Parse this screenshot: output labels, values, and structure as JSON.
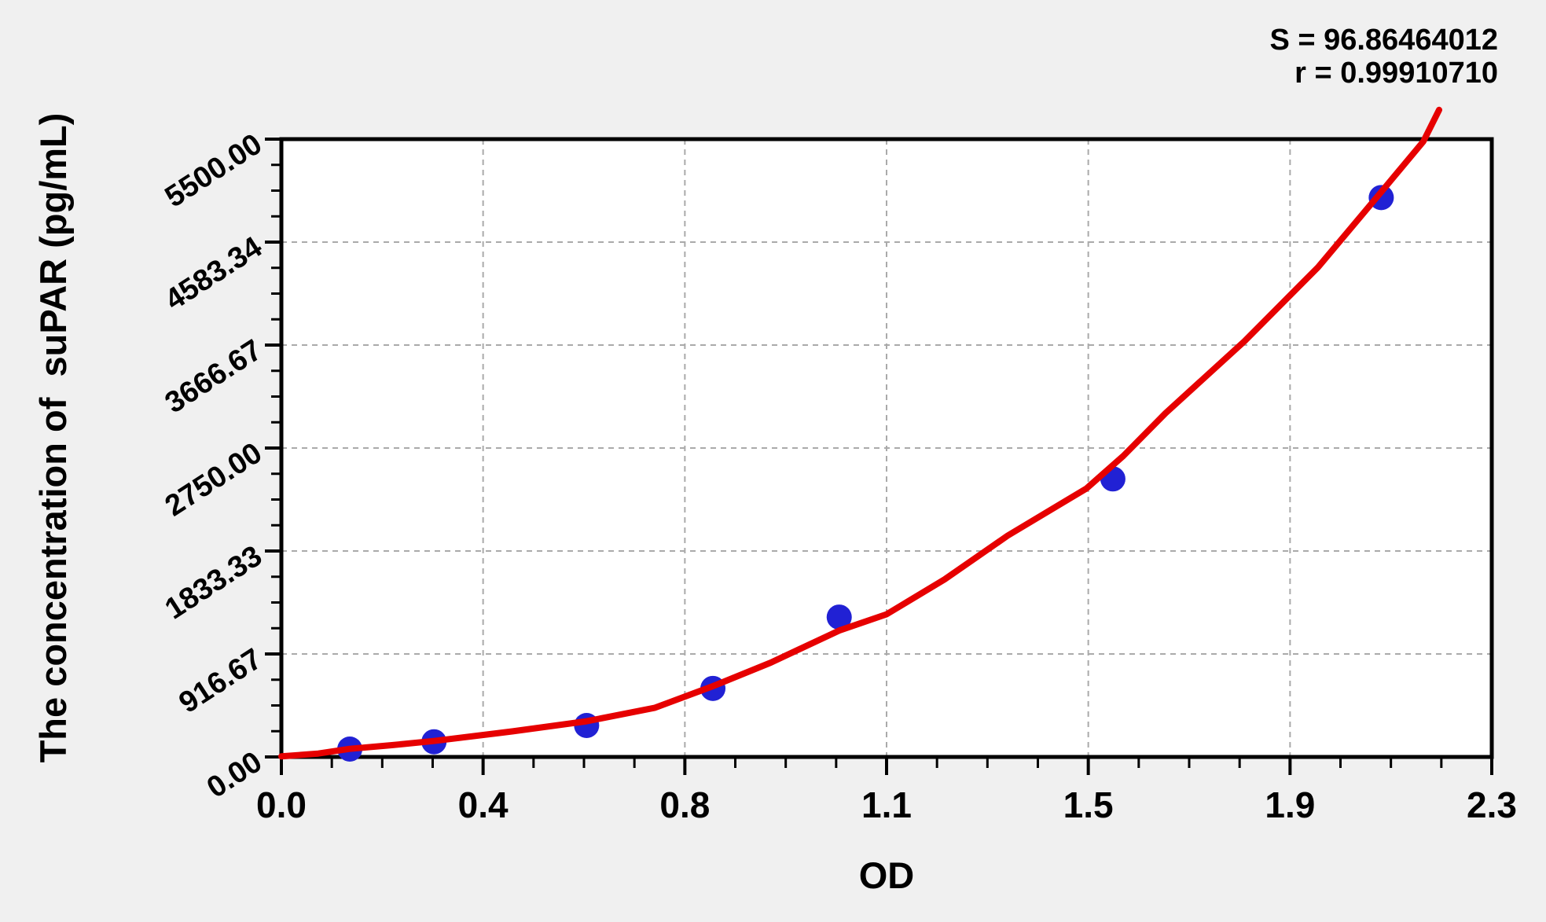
{
  "annotations": {
    "s_line": "S = 96.86464012",
    "r_line": "r = 0.99910710"
  },
  "chart_data": {
    "type": "scatter",
    "title": "",
    "xlabel": "OD",
    "ylabel": "The concentration of  suPAR (pg/mL)",
    "xlim": [
      0,
      2.3
    ],
    "ylim": [
      0,
      5500
    ],
    "x_tick_values": [
      0,
      0.3833,
      0.7667,
      1.15,
      1.5333,
      1.9167,
      2.3
    ],
    "x_tick_labels": [
      "0.0",
      "0.4",
      "0.8",
      "1.1",
      "1.5",
      "1.9",
      "2.3"
    ],
    "y_tick_values": [
      0,
      916.67,
      1833.33,
      2750.0,
      3666.67,
      4583.34,
      5500.0
    ],
    "y_tick_labels": [
      "0.00",
      "916.67",
      "1833.33",
      "2750.00",
      "3666.67",
      "4583.34",
      "5500.00"
    ],
    "x_minor_divisions": 4,
    "y_minor_divisions": 4,
    "grid": "dashed gray at major ticks, both axes",
    "legend": "none",
    "stats": {
      "S": "96.86464012",
      "r": "0.99910710"
    },
    "series": [
      {
        "name": "standard-points",
        "type": "scatter",
        "color": "#2121d4",
        "marker_radius_px": 16,
        "points": [
          [
            0.13,
            70
          ],
          [
            0.29,
            135
          ],
          [
            0.58,
            280
          ],
          [
            0.82,
            610
          ],
          [
            1.06,
            1245
          ],
          [
            1.58,
            2475
          ],
          [
            2.09,
            4980
          ]
        ]
      },
      {
        "name": "fitted-curve",
        "type": "line",
        "color": "#e60000",
        "stroke_width_px": 8,
        "points": [
          [
            0.0,
            5
          ],
          [
            0.07,
            30
          ],
          [
            0.13,
            72
          ],
          [
            0.21,
            105
          ],
          [
            0.29,
            142
          ],
          [
            0.44,
            228
          ],
          [
            0.58,
            318
          ],
          [
            0.71,
            438
          ],
          [
            0.82,
            630
          ],
          [
            0.93,
            840
          ],
          [
            1.06,
            1125
          ],
          [
            1.15,
            1270
          ],
          [
            1.26,
            1580
          ],
          [
            1.38,
            1970
          ],
          [
            1.53,
            2390
          ],
          [
            1.6,
            2680
          ],
          [
            1.68,
            3060
          ],
          [
            1.83,
            3700
          ],
          [
            1.97,
            4360
          ],
          [
            2.09,
            5030
          ],
          [
            2.17,
            5480
          ],
          [
            2.2,
            5760
          ]
        ]
      }
    ]
  },
  "colors": {
    "background": "#f0f0f0",
    "plot_background": "#ffffff",
    "frame": "#000000",
    "grid": "#aaaaaa",
    "curve_red": "#e60000",
    "point_blue": "#2121d4",
    "text": "#000000"
  }
}
